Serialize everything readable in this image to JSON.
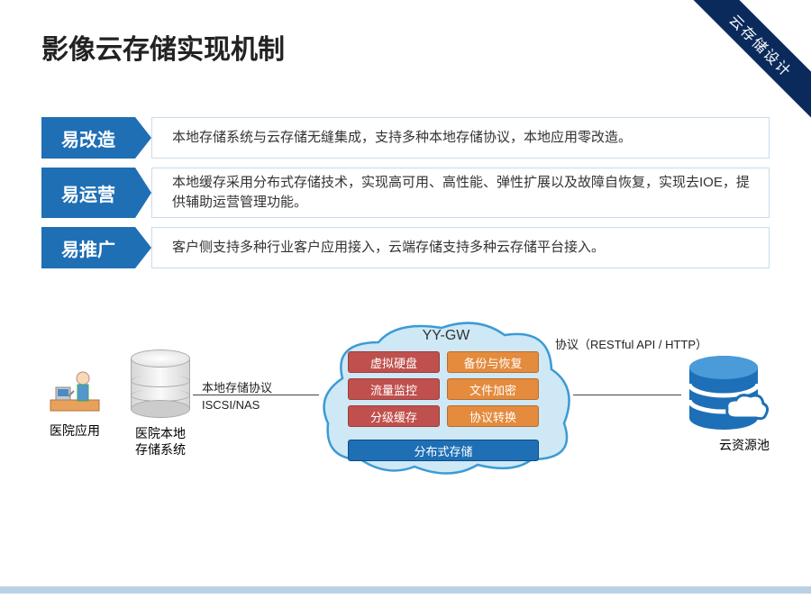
{
  "corner_ribbon": "云存储设计",
  "title": "影像云存储实现机制",
  "bullets": [
    {
      "tag": "易改造",
      "text": "本地存储系统与云存储无缝集成，支持多种本地存储协议，本地应用零改造。",
      "tall": false
    },
    {
      "tag": "易运营",
      "text": "本地缓存采用分布式存储技术，实现高可用、高性能、弹性扩展以及故障自恢复，实现去IOE，提供辅助运营管理功能。",
      "tall": true
    },
    {
      "tag": "易推广",
      "text": "客户侧支持多种行业客户应用接入，云端存储支持多种云存储平台接入。",
      "tall": false
    }
  ],
  "diagram": {
    "hospital_app": "医院应用",
    "local_storage": "医院本地\n存储系统",
    "protocol_left_top": "本地存储协议",
    "protocol_left_bottom": "ISCSI/NAS",
    "cloud_title": "YY-GW",
    "features": [
      {
        "label": "虚拟硬盘",
        "color": "#c0504d"
      },
      {
        "label": "备份与恢复",
        "color": "#e48b3d"
      },
      {
        "label": "流量监控",
        "color": "#c0504d"
      },
      {
        "label": "文件加密",
        "color": "#e48b3d"
      },
      {
        "label": "分级缓存",
        "color": "#c0504d"
      },
      {
        "label": "协议转换",
        "color": "#e48b3d"
      }
    ],
    "feature_wide": "分布式存储",
    "protocol_right": "协议（RESTful API / HTTP）",
    "cloud_pool": "云资源池"
  },
  "colors": {
    "chevron": "#1f6fb5",
    "chevron_border": "#c9dbea",
    "ribbon": "#0a2a5c",
    "cloud_fill": "#cfe8f6",
    "cloud_stroke": "#3b9bd4",
    "db_blue": "#1d6fb7"
  }
}
